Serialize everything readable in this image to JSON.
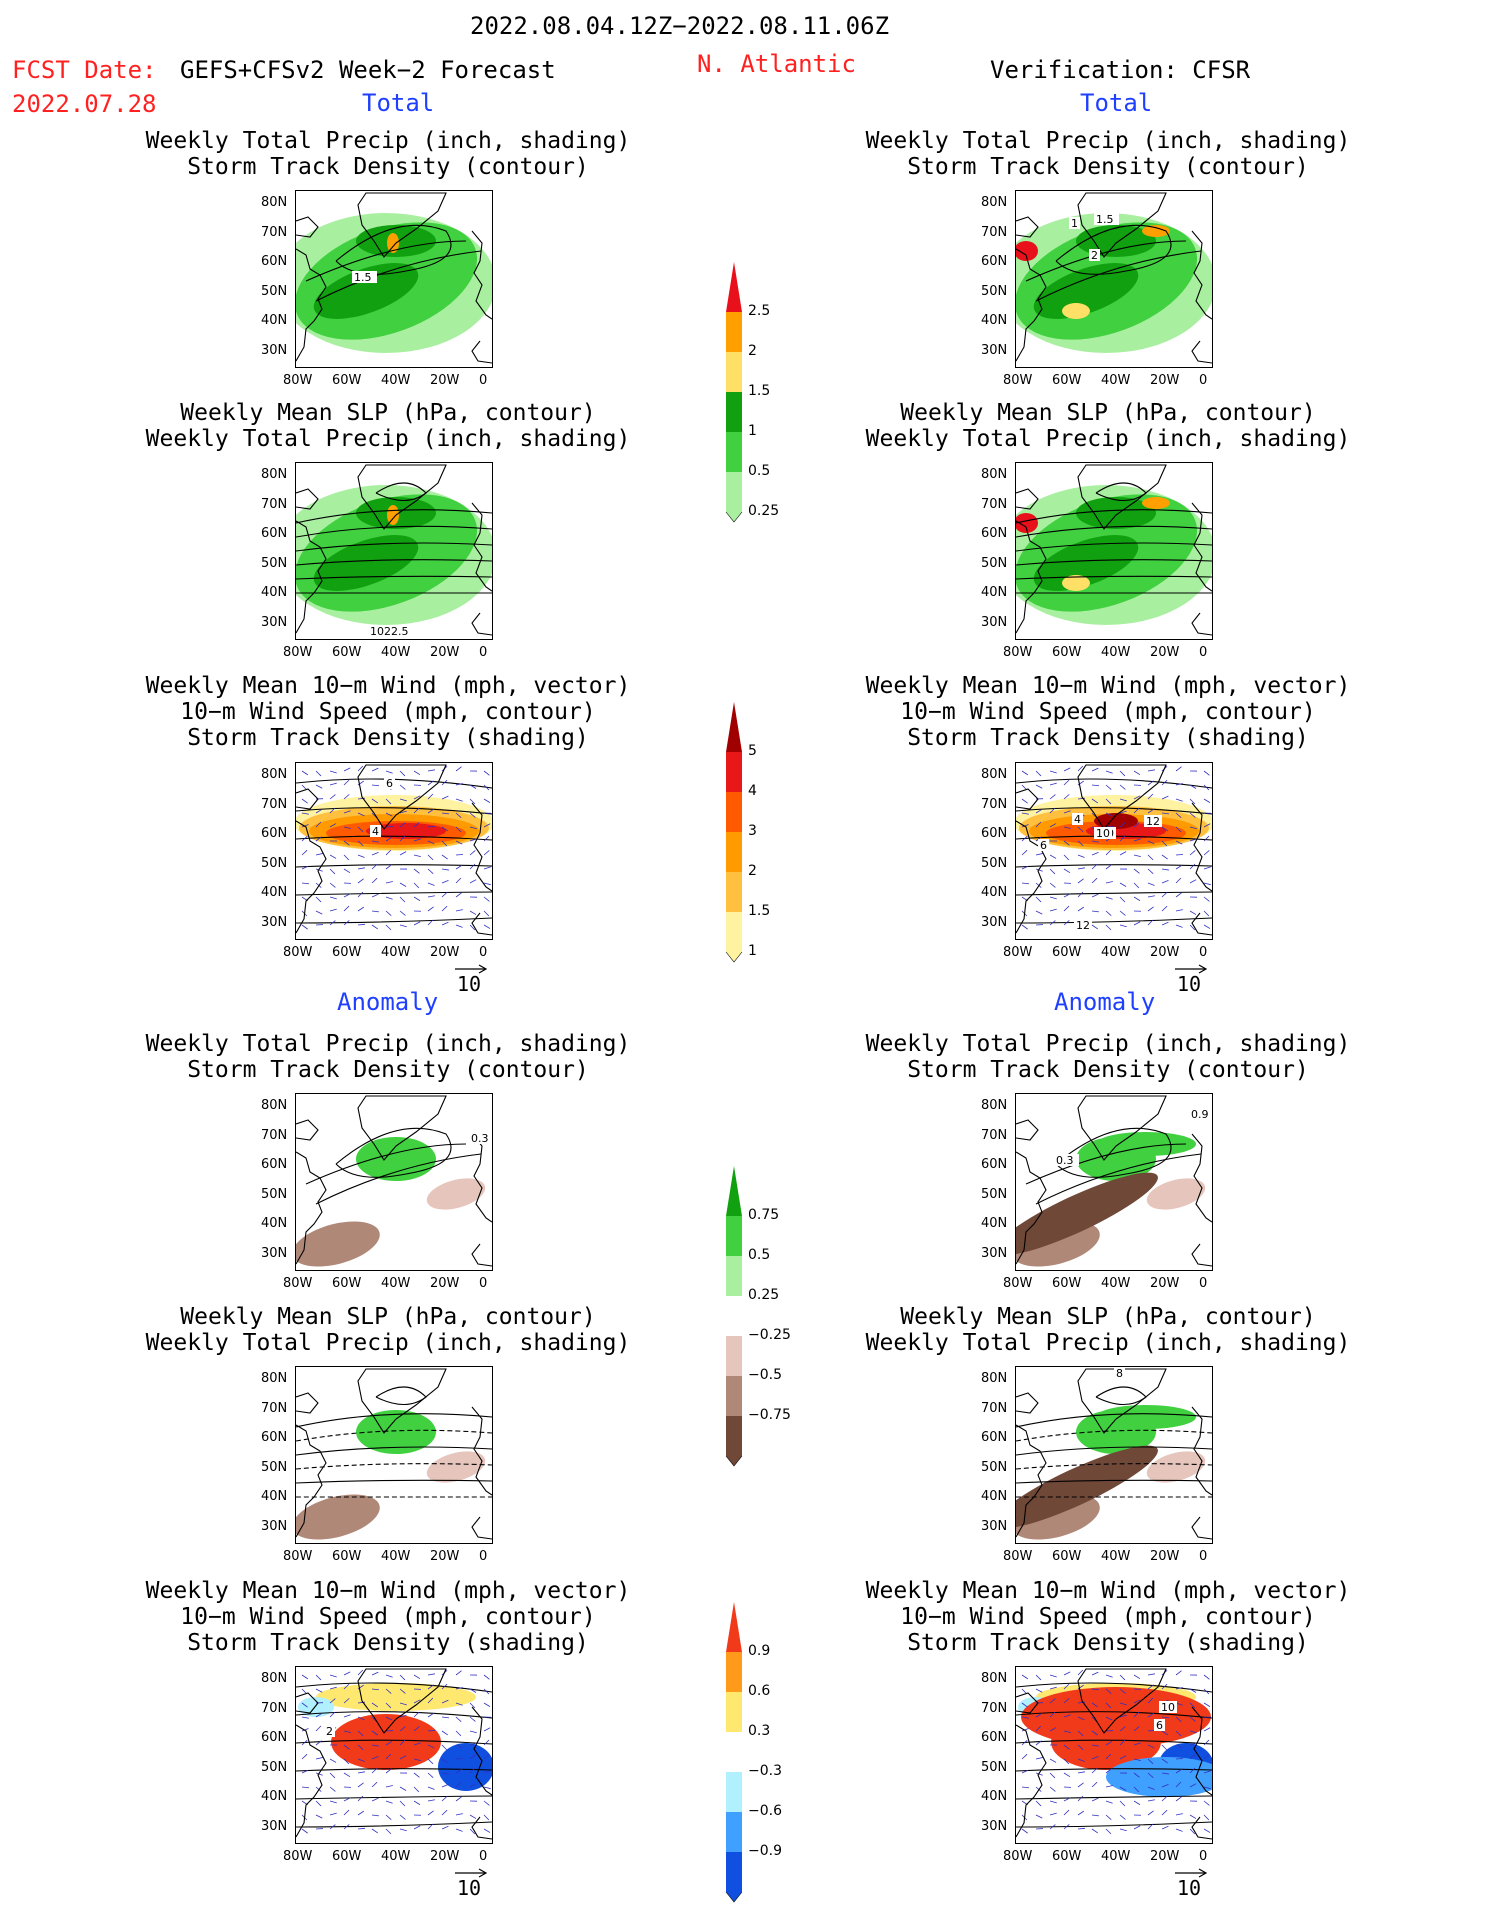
{
  "header": {
    "period": "2022.08.04.12Z−2022.08.11.06Z",
    "fcst_label": "FCST Date:",
    "fcst_model": "GEFS+CFSv2 Week−2 Forecast",
    "fcst_date": "2022.07.28",
    "region": "N. Atlantic",
    "verification": "Verification: CFSR"
  },
  "sections": {
    "total": "Total",
    "anomaly": "Anomaly"
  },
  "panel_titles": {
    "precip_track": [
      "Weekly Total Precip (inch, shading)",
      "Storm Track Density (contour)"
    ],
    "slp_precip": [
      "Weekly Mean SLP (hPa, contour)",
      "Weekly Total Precip (inch, shading)"
    ],
    "wind_track": [
      "Weekly Mean 10−m Wind (mph, vector)",
      "10−m Wind Speed (mph, contour)",
      "Storm Track Density (shading)"
    ]
  },
  "axes": {
    "lat_ticks": [
      "80N",
      "70N",
      "60N",
      "50N",
      "40N",
      "30N"
    ],
    "lon_ticks": [
      "80W",
      "60W",
      "40W",
      "20W",
      "0"
    ],
    "vector_ref": "10"
  },
  "colorbars": {
    "precip_total": {
      "labels": [
        "2.5",
        "2",
        "1.5",
        "1",
        "0.5",
        "0.25"
      ],
      "colors": [
        "#e8101a",
        "#ffa000",
        "#ffe066",
        "#10a010",
        "#40d040",
        "#a8f0a0"
      ]
    },
    "track_total": {
      "labels": [
        "5",
        "4",
        "3",
        "2",
        "1.5",
        "1"
      ],
      "colors": [
        "#a00000",
        "#e81818",
        "#ff5a00",
        "#ff9a00",
        "#ffc040",
        "#fff2a0"
      ]
    },
    "precip_anom": {
      "labels": [
        "0.75",
        "0.5",
        "0.25",
        "−0.25",
        "−0.5",
        "−0.75"
      ],
      "colors": [
        "#10a010",
        "#40d040",
        "#a8f0a0",
        "#ffffff",
        "#e6c6bc",
        "#b08878",
        "#704838"
      ]
    },
    "track_anom": {
      "labels": [
        "0.9",
        "0.6",
        "0.3",
        "−0.3",
        "−0.6",
        "−0.9"
      ],
      "colors": [
        "#f03a1a",
        "#ff9a1a",
        "#ffe870",
        "#ffffff",
        "#b0f0ff",
        "#40a0ff",
        "#1050e0"
      ]
    }
  },
  "contour_labels": {
    "left_total_precip": "1.5",
    "right_total_precip": [
      "1",
      "1.5",
      "2"
    ],
    "left_total_slp": "1022.5",
    "left_total_wind": [
      "6",
      "4"
    ],
    "right_total_wind": [
      "4",
      "10",
      "12",
      "6",
      "12",
      "10"
    ],
    "left_anom_precip": "0.3",
    "right_anom_precip": [
      "0.9",
      "0.3"
    ],
    "right_anom_slp": "8",
    "left_anom_wind": "2",
    "right_anom_wind": [
      "10",
      "6"
    ]
  }
}
